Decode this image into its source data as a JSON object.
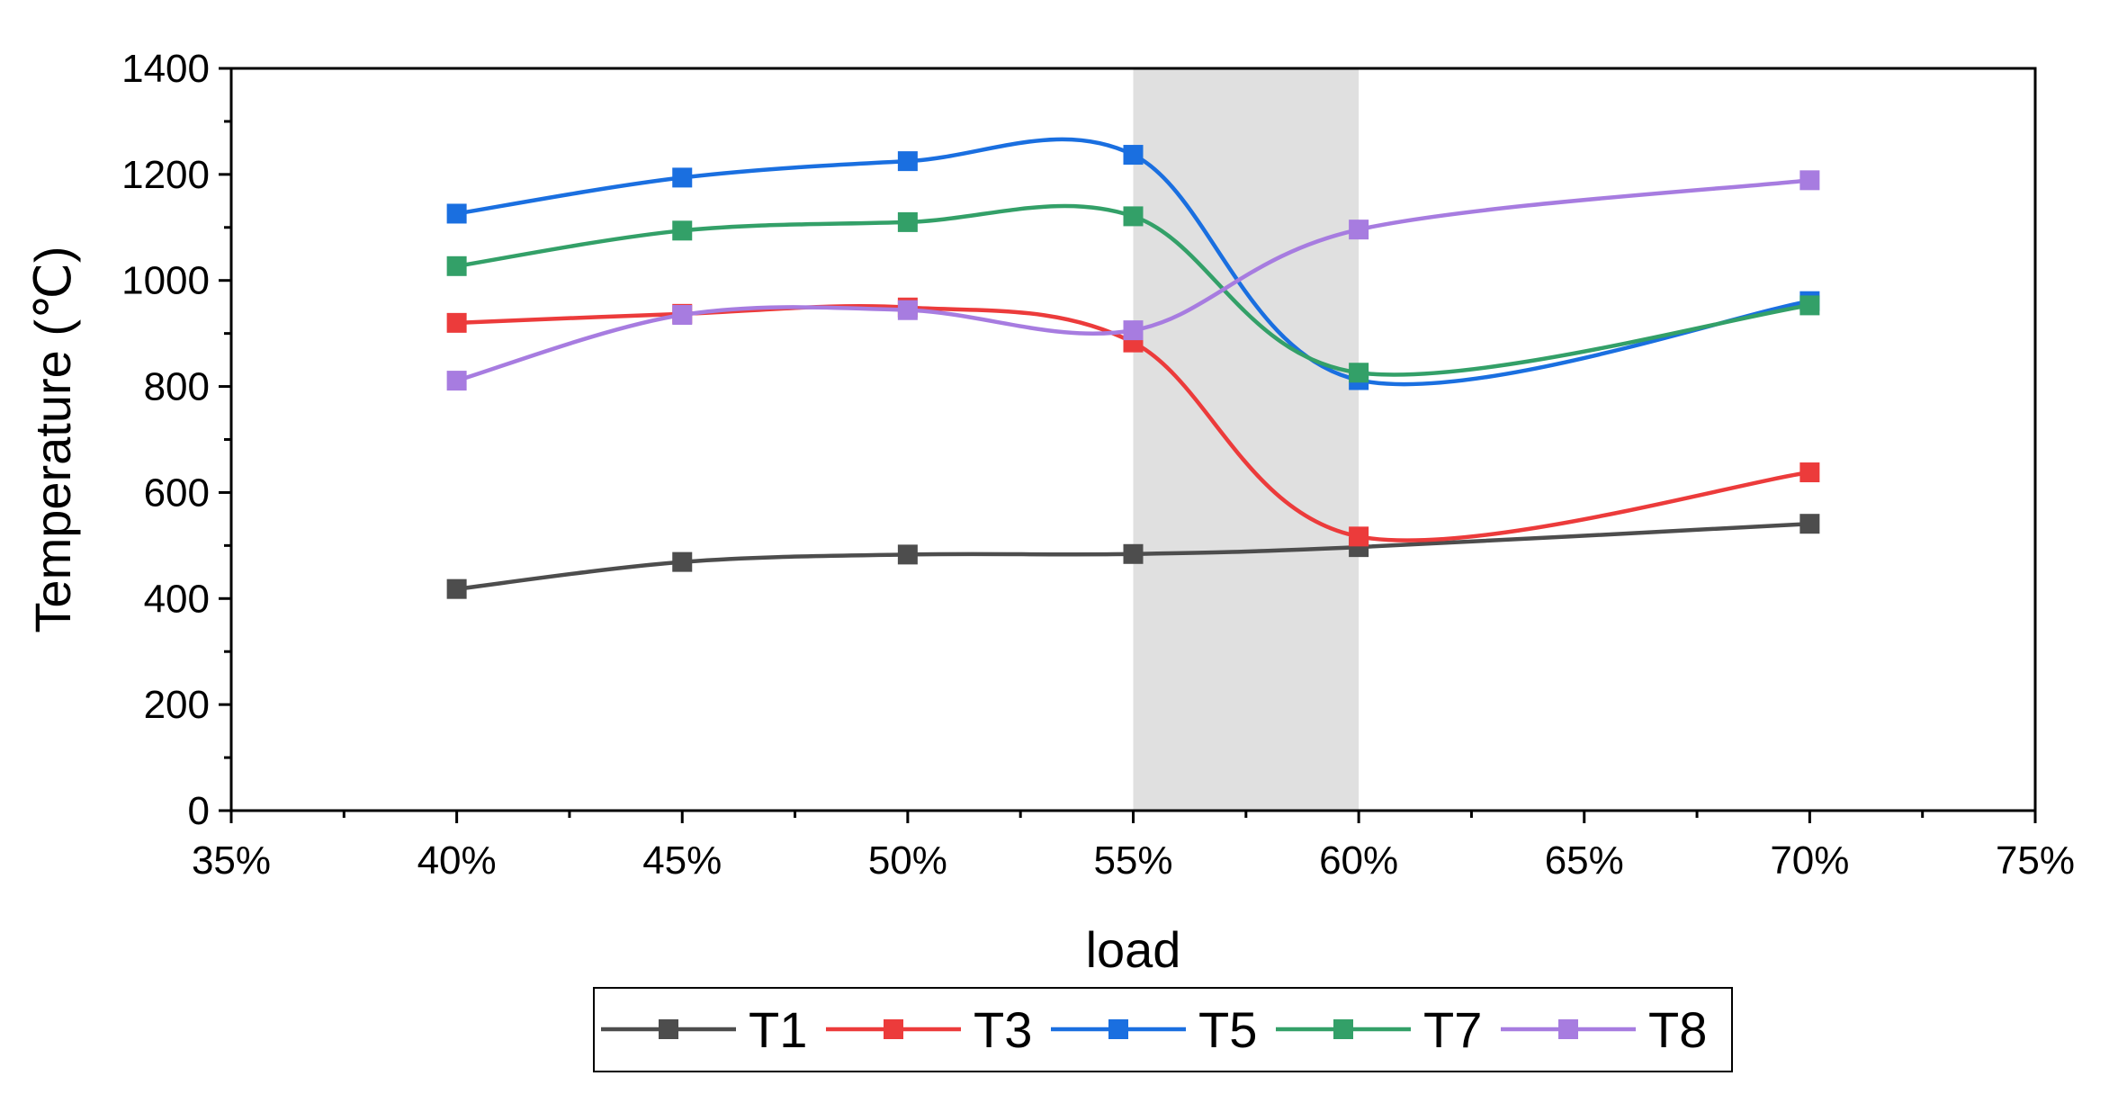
{
  "chart_data": {
    "type": "line",
    "xlabel": "load",
    "ylabel": "Temperature (℃)",
    "xlim": [
      35,
      75
    ],
    "ylim": [
      0,
      1400
    ],
    "x_ticks": [
      "35%",
      "40%",
      "45%",
      "50%",
      "55%",
      "60%",
      "65%",
      "70%",
      "75%"
    ],
    "y_ticks": [
      "0",
      "200",
      "400",
      "600",
      "800",
      "1000",
      "1200",
      "1400"
    ],
    "shaded_region": {
      "x_range": [
        55,
        60
      ],
      "color": "#e0e0e0"
    },
    "grid": false,
    "legend_position": "bottom",
    "x": [
      40,
      45,
      50,
      55,
      60,
      70
    ],
    "series": [
      {
        "name": "T1",
        "color": "#4d4d4d",
        "values": [
          418,
          469,
          483,
          484,
          497,
          541
        ]
      },
      {
        "name": "T3",
        "color": "#ec3b3b",
        "values": [
          920,
          937,
          949,
          883,
          517,
          638
        ]
      },
      {
        "name": "T5",
        "color": "#1a6fe0",
        "values": [
          1126,
          1194,
          1225,
          1237,
          812,
          961
        ]
      },
      {
        "name": "T7",
        "color": "#33a068",
        "values": [
          1027,
          1094,
          1110,
          1121,
          826,
          953
        ]
      },
      {
        "name": "T8",
        "color": "#a77ce0",
        "values": [
          811,
          935,
          944,
          906,
          1096,
          1189
        ]
      }
    ]
  }
}
